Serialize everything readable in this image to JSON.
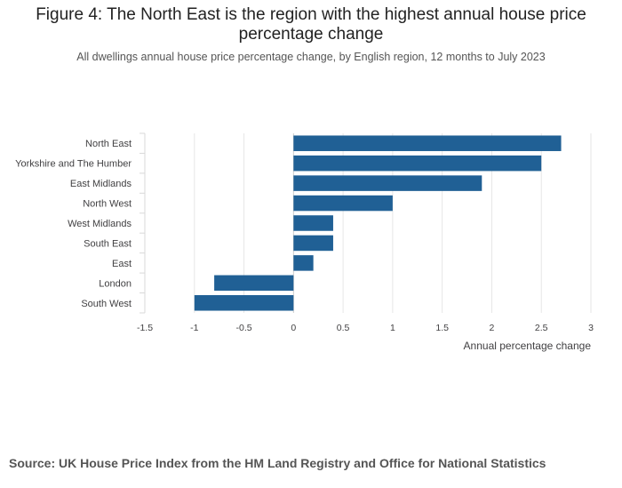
{
  "chart_data": {
    "type": "bar",
    "orientation": "horizontal",
    "title": "Figure 4: The North East is the region with the highest annual house price percentage change",
    "subtitle": "All dwellings annual house price percentage change, by English region, 12 months to July 2023",
    "xlabel": "Annual percentage change",
    "ylabel": "",
    "categories": [
      "North East",
      "Yorkshire and The Humber",
      "East Midlands",
      "North West",
      "West Midlands",
      "South East",
      "East",
      "London",
      "South West"
    ],
    "values": [
      2.7,
      2.5,
      1.9,
      1.0,
      0.4,
      0.4,
      0.2,
      -0.8,
      -1.0
    ],
    "xlim": [
      -1.5,
      3
    ],
    "xticks": [
      -1.5,
      -1,
      -0.5,
      0,
      0.5,
      1,
      1.5,
      2,
      2.5,
      3
    ],
    "xtick_labels": [
      "-1.5",
      "-1",
      "-0.5",
      "0",
      "0.5",
      "1",
      "1.5",
      "2",
      "2.5",
      "3"
    ],
    "grid": true,
    "legend": "none",
    "bar_color": "#206095"
  },
  "source": "Source: UK House Price Index from the HM Land Registry and Office for National Statistics"
}
